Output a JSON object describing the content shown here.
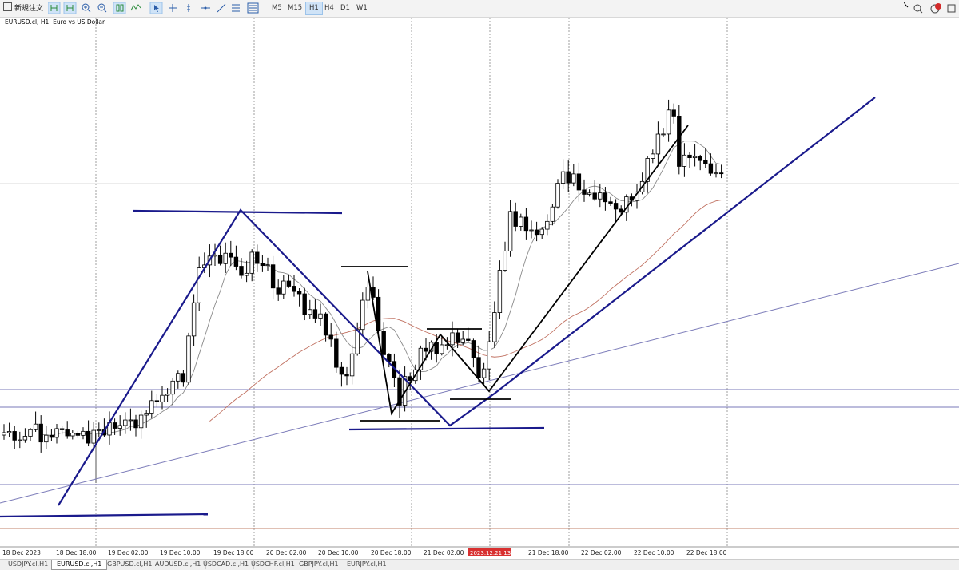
{
  "toolbar": {
    "order_button": "新規注文",
    "timeframes": [
      "M5",
      "M15",
      "H1",
      "H4",
      "D1",
      "W1"
    ]
  },
  "chart": {
    "title": "EURUSD.cl, H1:  Euro vs US Dollar",
    "time_labels": [
      "18 Dec 2023",
      "18 Dec 18:00",
      "19 Dec 02:00",
      "19 Dec 10:00",
      "19 Dec 18:00",
      "20 Dec 02:00",
      "20 Dec 10:00",
      "20 Dec 18:00",
      "21 Dec 02:00",
      "2023.12.21 13:00",
      "21 Dec 18:00",
      "22 Dec 02:00",
      "22 Dec 10:00",
      "22 Dec 18:00"
    ]
  },
  "tabs": [
    "USDJPY.cl,H1",
    "EURUSD.cl,H1",
    "GBPUSD.cl,H1",
    "AUDUSD.cl,H1",
    "USDCAD.cl,H1",
    "USDCHF.cl,H1",
    "GBPJPY.cl,H1",
    "EURJPY.cl,H1"
  ]
}
